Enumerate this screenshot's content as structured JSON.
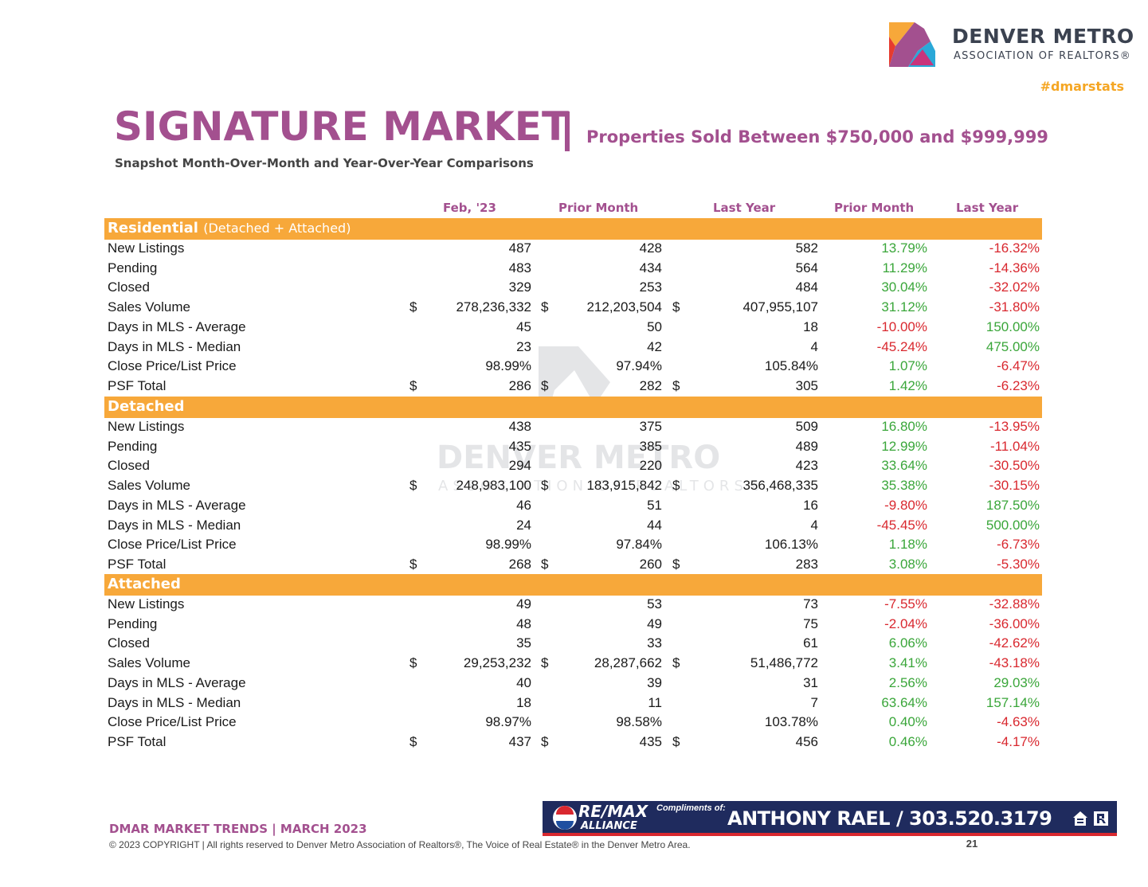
{
  "brand": {
    "name": "DENVER METRO",
    "sub": "ASSOCIATION OF REALTORS®",
    "hashtag": "#dmarstats",
    "colors": {
      "purple": "#a3508f",
      "orange": "#f7a83a",
      "green": "#3aa63a",
      "red": "#d9282f",
      "navy": "#1f2b5e"
    }
  },
  "header": {
    "title": "SIGNATURE MARKET",
    "subtitle": "Properties Sold Between $750,000 and $999,999",
    "snapshot": "Snapshot Month-Over-Month and Year-Over-Year Comparisons"
  },
  "columns": [
    "Feb, '23",
    "Prior Month",
    "Last Year",
    "Prior Month",
    "Last Year"
  ],
  "sections": [
    {
      "title": "Residential",
      "note": "(Detached + Attached)",
      "rows": [
        {
          "label": "New Listings",
          "d": false,
          "v1": "487",
          "v2": "428",
          "v3": "582",
          "p1": "13.79%",
          "p2": "-16.32%"
        },
        {
          "label": "Pending",
          "d": false,
          "v1": "483",
          "v2": "434",
          "v3": "564",
          "p1": "11.29%",
          "p2": "-14.36%"
        },
        {
          "label": "Closed",
          "d": false,
          "v1": "329",
          "v2": "253",
          "v3": "484",
          "p1": "30.04%",
          "p2": "-32.02%"
        },
        {
          "label": "Sales Volume",
          "d": true,
          "v1": "278,236,332",
          "v2": "212,203,504",
          "v3": "407,955,107",
          "p1": "31.12%",
          "p2": "-31.80%"
        },
        {
          "label": "Days in MLS - Average",
          "d": false,
          "v1": "45",
          "v2": "50",
          "v3": "18",
          "p1": "-10.00%",
          "p2": "150.00%"
        },
        {
          "label": "Days in MLS - Median",
          "d": false,
          "v1": "23",
          "v2": "42",
          "v3": "4",
          "p1": "-45.24%",
          "p2": "475.00%"
        },
        {
          "label": "Close Price/List Price",
          "d": false,
          "v1": "98.99%",
          "v2": "97.94%",
          "v3": "105.84%",
          "p1": "1.07%",
          "p2": "-6.47%"
        },
        {
          "label": "PSF Total",
          "d": true,
          "v1": "286",
          "v2": "282",
          "v3": "305",
          "p1": "1.42%",
          "p2": "-6.23%"
        }
      ]
    },
    {
      "title": "Detached",
      "note": "",
      "rows": [
        {
          "label": "New Listings",
          "d": false,
          "v1": "438",
          "v2": "375",
          "v3": "509",
          "p1": "16.80%",
          "p2": "-13.95%"
        },
        {
          "label": "Pending",
          "d": false,
          "v1": "435",
          "v2": "385",
          "v3": "489",
          "p1": "12.99%",
          "p2": "-11.04%"
        },
        {
          "label": "Closed",
          "d": false,
          "v1": "294",
          "v2": "220",
          "v3": "423",
          "p1": "33.64%",
          "p2": "-30.50%"
        },
        {
          "label": "Sales Volume",
          "d": true,
          "v1": "248,983,100",
          "v2": "183,915,842",
          "v3": "356,468,335",
          "p1": "35.38%",
          "p2": "-30.15%"
        },
        {
          "label": "Days in MLS - Average",
          "d": false,
          "v1": "46",
          "v2": "51",
          "v3": "16",
          "p1": "-9.80%",
          "p2": "187.50%"
        },
        {
          "label": "Days in MLS - Median",
          "d": false,
          "v1": "24",
          "v2": "44",
          "v3": "4",
          "p1": "-45.45%",
          "p2": "500.00%"
        },
        {
          "label": "Close Price/List Price",
          "d": false,
          "v1": "98.99%",
          "v2": "97.84%",
          "v3": "106.13%",
          "p1": "1.18%",
          "p2": "-6.73%"
        },
        {
          "label": "PSF Total",
          "d": true,
          "v1": "268",
          "v2": "260",
          "v3": "283",
          "p1": "3.08%",
          "p2": "-5.30%"
        }
      ]
    },
    {
      "title": "Attached",
      "note": "",
      "rows": [
        {
          "label": "New Listings",
          "d": false,
          "v1": "49",
          "v2": "53",
          "v3": "73",
          "p1": "-7.55%",
          "p2": "-32.88%"
        },
        {
          "label": "Pending",
          "d": false,
          "v1": "48",
          "v2": "49",
          "v3": "75",
          "p1": "-2.04%",
          "p2": "-36.00%"
        },
        {
          "label": "Closed",
          "d": false,
          "v1": "35",
          "v2": "33",
          "v3": "61",
          "p1": "6.06%",
          "p2": "-42.62%"
        },
        {
          "label": "Sales Volume",
          "d": true,
          "v1": "29,253,232",
          "v2": "28,287,662",
          "v3": "51,486,772",
          "p1": "3.41%",
          "p2": "-43.18%"
        },
        {
          "label": "Days in MLS - Average",
          "d": false,
          "v1": "40",
          "v2": "39",
          "v3": "31",
          "p1": "2.56%",
          "p2": "29.03%"
        },
        {
          "label": "Days in MLS - Median",
          "d": false,
          "v1": "18",
          "v2": "11",
          "v3": "7",
          "p1": "63.64%",
          "p2": "157.14%"
        },
        {
          "label": "Close Price/List Price",
          "d": false,
          "v1": "98.97%",
          "v2": "98.58%",
          "v3": "103.78%",
          "p1": "0.40%",
          "p2": "-4.63%"
        },
        {
          "label": "PSF Total",
          "d": true,
          "v1": "437",
          "v2": "435",
          "v3": "456",
          "p1": "0.46%",
          "p2": "-4.17%"
        }
      ]
    }
  ],
  "dollar_sign": "$",
  "footer": {
    "title": "DMAR MARKET TRENDS | MARCH 2023",
    "copyright": "© 2023 COPYRIGHT | All rights reserved to Denver Metro Association of Realtors®, The Voice of Real Estate® in the Denver Metro Area.",
    "page": "21"
  },
  "banner": {
    "brand": "RE/MAX",
    "brand_sub": "ALLIANCE",
    "compliments": "Compliments of:",
    "agent": "ANTHONY RAEL / 303.520.3179",
    "icons": [
      "equal-housing-icon",
      "realtor-r-icon"
    ]
  }
}
